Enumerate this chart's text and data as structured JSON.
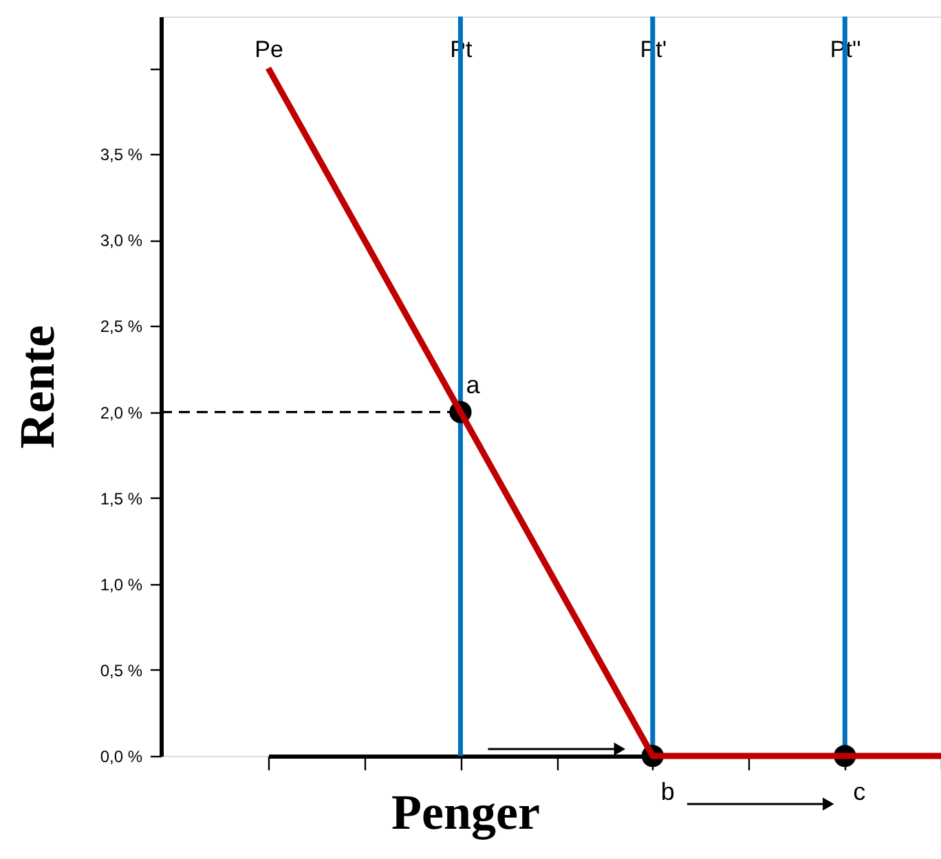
{
  "chart_data": {
    "type": "line",
    "xlabel": "Penger",
    "ylabel": "Rente",
    "categories": [
      "Pe",
      null,
      "Pt",
      null,
      "Pt'",
      null,
      "Pt''",
      null
    ],
    "ylim": [
      0,
      4.3
    ],
    "yticks": [
      {
        "value": 0,
        "label": "0,0 %"
      },
      {
        "value": 0.5,
        "label": "0,5 %"
      },
      {
        "value": 1,
        "label": "1,0 %"
      },
      {
        "value": 1.5,
        "label": "1,5 %"
      },
      {
        "value": 2,
        "label": "2,0 %"
      },
      {
        "value": 2.5,
        "label": "2,5 %"
      },
      {
        "value": 3,
        "label": "3,0 %"
      },
      {
        "value": 3.5,
        "label": "3,5 %"
      },
      {
        "value": 4,
        "label": null
      }
    ],
    "grid": false,
    "series": [
      {
        "color": "#c00000",
        "values": [
          4,
          3,
          2,
          1,
          0,
          0,
          0,
          0
        ],
        "line_style": "solid"
      },
      {
        "type": "scatter",
        "color": "#000000",
        "values": [
          null,
          null,
          2,
          null,
          0,
          null,
          0,
          null
        ],
        "marker": "circle",
        "value_labels": [
          null,
          null,
          "a",
          null,
          "b",
          null,
          "c",
          null
        ]
      }
    ],
    "ref_lines": [
      {
        "axis": "y",
        "value": 2,
        "color": "#000000",
        "line_style": "dashed"
      },
      {
        "axis": "x",
        "value": "Pt",
        "color": "#0070c0"
      },
      {
        "axis": "x",
        "value": "Pt'",
        "color": "#0070c0"
      },
      {
        "axis": "x",
        "value": "Pt''",
        "color": "#0070c0"
      }
    ]
  }
}
